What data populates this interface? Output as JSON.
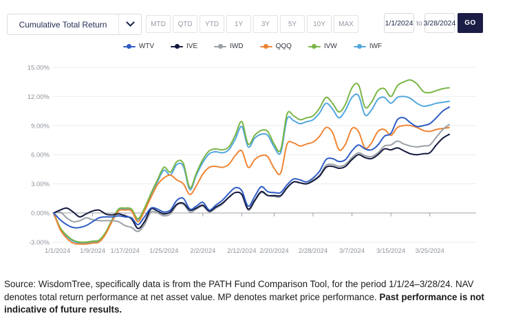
{
  "toolbar": {
    "metric_select": {
      "value": "Cumulative Total Return"
    },
    "periods": [
      "MTD",
      "QTD",
      "YTD",
      "1Y",
      "3Y",
      "5Y",
      "10Y",
      "MAX"
    ],
    "date_range": {
      "start": "1/1/2024",
      "to_label": "to",
      "end": "3/28/2024",
      "go_label": "GO"
    }
  },
  "chart_data": {
    "type": "line",
    "title": "",
    "xlabel": "",
    "ylabel": "",
    "unit": "percent cumulative total return",
    "x_labels": [
      "1/1/2024",
      "1/9/2024",
      "1/17/2024",
      "1/25/2024",
      "2/2/2024",
      "2/12/2024",
      "2/20/2024",
      "2/28/2024",
      "3/7/2024",
      "3/15/2024",
      "3/25/2024"
    ],
    "x_label_indices": [
      0,
      6,
      11,
      17,
      23,
      29,
      34,
      40,
      46,
      52,
      58
    ],
    "points_span": "trading days 1/1/2024 through 3/28/2024",
    "y_ticks": {
      "values": [
        15,
        12,
        9,
        6,
        3,
        0,
        -3
      ],
      "labels": [
        "15.00%",
        "12.00%",
        "9.00%",
        "6.00%",
        "3.00%",
        "0.00%",
        "-3.00%"
      ]
    },
    "ylim": [
      -3.6,
      15
    ],
    "grid": true,
    "legend_position": "top",
    "grid_color": "#ededef",
    "axis_color": "#9b9ca0",
    "tick_label_color": "#8e939b",
    "series": [
      {
        "name": "WTV",
        "color": "#2e5cc5",
        "values": [
          0,
          -0.7,
          -1.2,
          -1.5,
          -1.5,
          -1.3,
          -0.9,
          -0.5,
          -0.4,
          -0.4,
          -0.3,
          -0.4,
          -0.5,
          -1.2,
          -0.4,
          0.5,
          0.4,
          0.1,
          0.3,
          1.3,
          1.5,
          0.4,
          0.7,
          1.1,
          0.3,
          0.8,
          1.3,
          2.0,
          2.6,
          2.3,
          0.7,
          1.7,
          2.7,
          2.2,
          2.1,
          2.1,
          2.9,
          3.5,
          3.4,
          3.2,
          3.6,
          4.3,
          5.5,
          5.6,
          5.3,
          5.5,
          6.4,
          7.0,
          6.6,
          6.5,
          7.0,
          7.9,
          8.2,
          9.6,
          9.8,
          9.3,
          8.9,
          9.0,
          9.2,
          9.8,
          10.5,
          10.9
        ]
      },
      {
        "name": "IVE",
        "color": "#12173d",
        "values": [
          0,
          0.3,
          0.5,
          0.1,
          -0.4,
          -0.1,
          0.2,
          0.3,
          -0.1,
          -0.2,
          -0.1,
          -0.3,
          -0.6,
          -1.6,
          -0.9,
          0.4,
          0.2,
          -0.1,
          0.1,
          0.9,
          1.0,
          0.3,
          0.5,
          0.8,
          0.2,
          0.6,
          1.0,
          1.6,
          2.1,
          1.9,
          0.4,
          1.3,
          2.2,
          1.8,
          1.8,
          1.8,
          2.6,
          3.2,
          3.1,
          3.0,
          3.3,
          3.8,
          4.7,
          4.8,
          4.6,
          4.8,
          5.5,
          6.0,
          5.7,
          5.6,
          6.0,
          6.6,
          6.5,
          6.7,
          6.4,
          6.1,
          6.0,
          6.1,
          6.2,
          7.0,
          7.7,
          8.1
        ]
      },
      {
        "name": "IWD",
        "color": "#9aa0a6",
        "values": [
          0,
          0.1,
          -0.5,
          -0.9,
          -0.8,
          -0.5,
          -0.7,
          -0.8,
          -0.8,
          -0.8,
          -0.9,
          -1.3,
          -1.5,
          -1.9,
          -1.2,
          0.1,
          0.0,
          -0.3,
          -0.1,
          0.8,
          0.9,
          0.1,
          0.4,
          0.7,
          0.1,
          0.5,
          0.9,
          1.6,
          2.1,
          1.9,
          0.3,
          1.2,
          2.1,
          1.8,
          1.7,
          1.7,
          2.6,
          3.2,
          3.1,
          3.0,
          3.4,
          3.9,
          4.9,
          5.0,
          4.8,
          5.0,
          5.7,
          6.2,
          5.9,
          5.8,
          6.2,
          6.9,
          7.0,
          7.4,
          7.1,
          6.9,
          6.8,
          6.9,
          7.0,
          7.8,
          8.6,
          9.1
        ]
      },
      {
        "name": "QQQ",
        "color": "#ef8433",
        "values": [
          0,
          -1.7,
          -2.6,
          -3.1,
          -3.2,
          -3.2,
          -3.1,
          -3.0,
          -2.2,
          -0.9,
          0.2,
          0.3,
          0.2,
          -0.9,
          0.2,
          1.6,
          2.9,
          3.6,
          3.9,
          3.4,
          3.0,
          1.9,
          2.8,
          4.0,
          4.7,
          4.8,
          4.7,
          5.0,
          5.9,
          6.4,
          4.7,
          5.5,
          5.9,
          5.8,
          4.6,
          4.1,
          7.1,
          7.2,
          6.9,
          7.1,
          7.3,
          7.9,
          8.8,
          8.3,
          6.5,
          7.1,
          8.7,
          8.4,
          6.7,
          7.2,
          8.4,
          8.6,
          8.0,
          8.8,
          9.0,
          9.0,
          8.8,
          8.5,
          8.4,
          8.6,
          8.7,
          8.8
        ]
      },
      {
        "name": "IVW",
        "color": "#79b544",
        "values": [
          0,
          -1.5,
          -2.3,
          -2.8,
          -3.0,
          -3.0,
          -2.9,
          -2.8,
          -2.0,
          -0.7,
          0.4,
          0.5,
          0.4,
          -0.6,
          0.5,
          2.0,
          3.4,
          4.7,
          4.2,
          5.3,
          5.1,
          2.6,
          4.1,
          5.5,
          6.4,
          6.6,
          6.5,
          6.8,
          8.0,
          9.4,
          7.1,
          8.0,
          8.5,
          8.4,
          7.1,
          6.5,
          10.2,
          10.0,
          9.6,
          9.8,
          10.0,
          10.8,
          11.9,
          11.3,
          10.4,
          11.2,
          12.9,
          13.2,
          10.9,
          11.4,
          12.6,
          12.8,
          12.0,
          13.1,
          13.5,
          13.7,
          13.3,
          12.5,
          12.4,
          12.6,
          12.8,
          12.9
        ]
      },
      {
        "name": "IWF",
        "color": "#52a7de",
        "values": [
          0,
          -1.6,
          -2.4,
          -2.9,
          -3.1,
          -3.1,
          -3.0,
          -2.9,
          -2.1,
          -0.8,
          0.3,
          0.4,
          0.3,
          -0.7,
          0.4,
          1.8,
          3.2,
          4.4,
          3.9,
          5.0,
          4.8,
          2.4,
          3.9,
          5.2,
          6.1,
          6.3,
          6.2,
          6.5,
          7.6,
          8.9,
          6.8,
          7.7,
          8.1,
          8.0,
          6.8,
          6.2,
          9.7,
          9.5,
          9.2,
          9.4,
          9.6,
          10.3,
          11.3,
          10.7,
          9.8,
          10.6,
          11.9,
          12.1,
          10.1,
          10.6,
          11.7,
          11.9,
          11.3,
          11.9,
          12.0,
          11.8,
          11.3,
          11.0,
          11.1,
          11.3,
          11.4,
          11.5
        ]
      }
    ]
  },
  "footer": {
    "text": "Source: WisdomTree, specifically data is from the PATH Fund Comparison Tool, for the period 1/1/24–3/28/24. NAV denotes total return performance at net asset value. MP denotes market price performance. ",
    "bold_text": "Past performance is not indicative of future results."
  }
}
